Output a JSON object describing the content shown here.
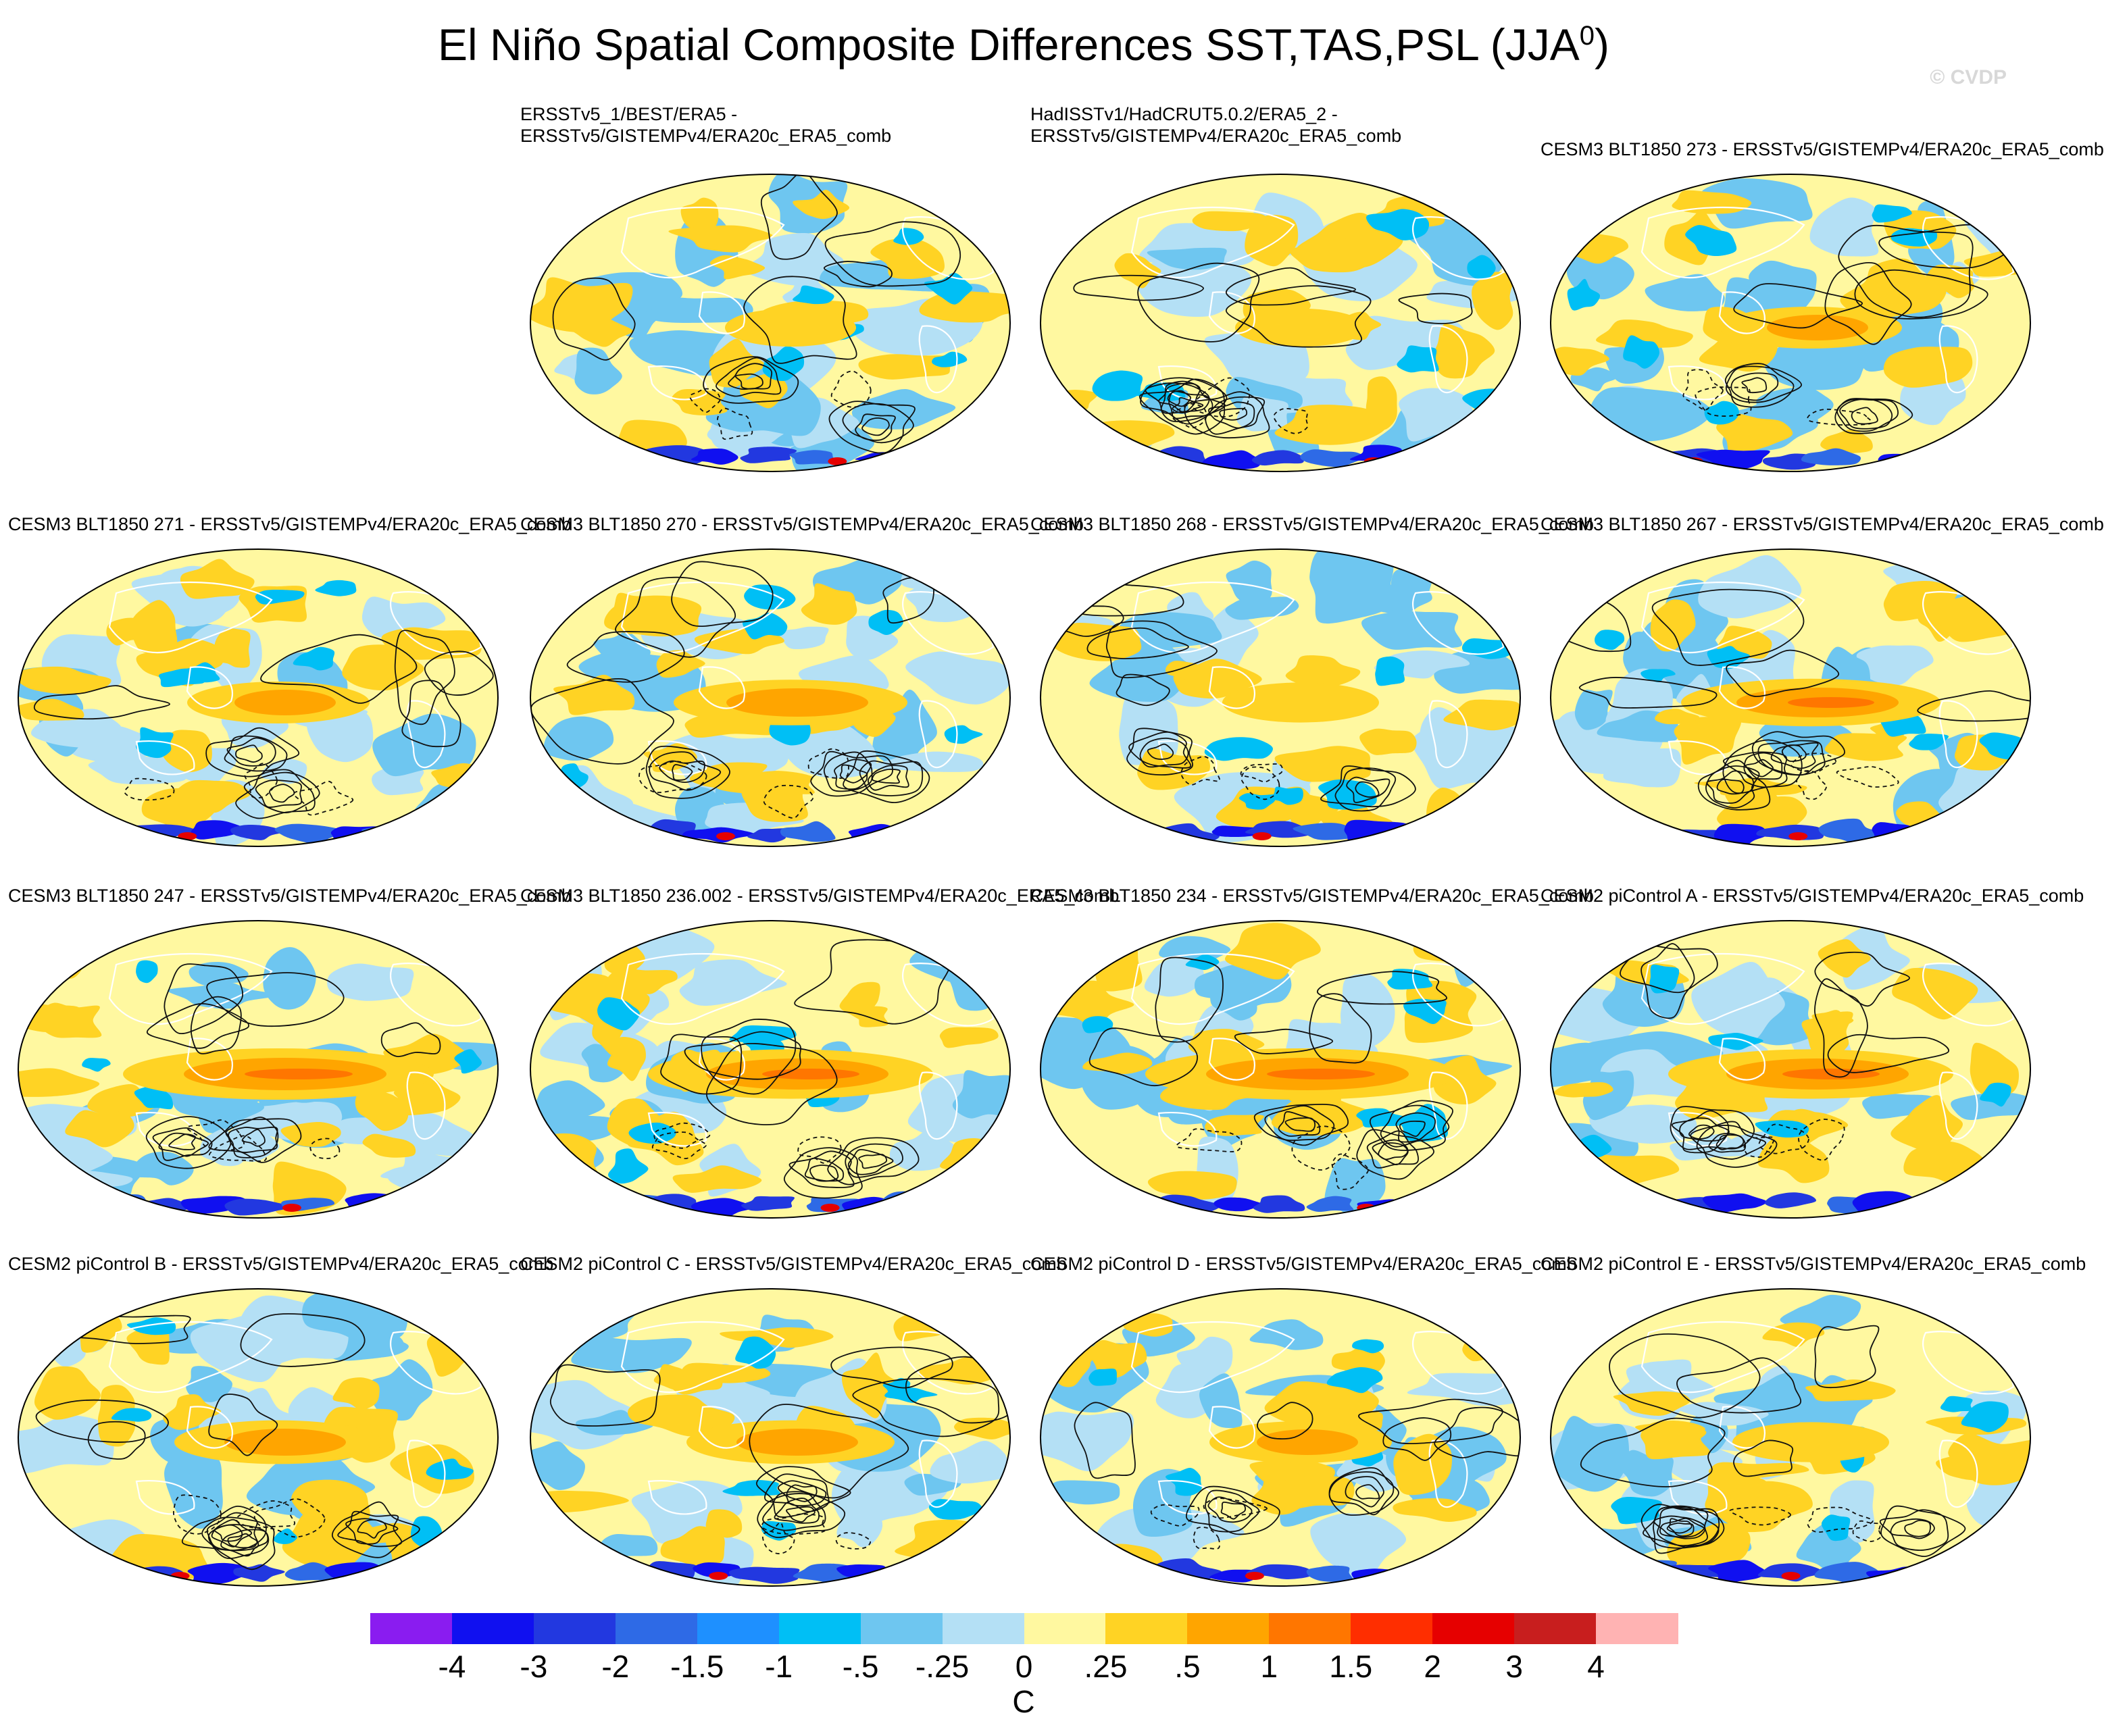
{
  "title": "El Niño Spatial Composite Differences SST,TAS,PSL (JJA",
  "title_superscript": "0",
  "title_close": ")",
  "watermark": "© CVDP",
  "panels": [
    {
      "lines": [
        "ERSSTv5_1/BEST/ERA5 -",
        "ERSSTv5/GISTEMPv4/ERA20c_ERA5_comb"
      ],
      "pattern": 0
    },
    {
      "lines": [
        "HadISSTv1/HadCRUT5.0.2/ERA5_2 -",
        "ERSSTv5/GISTEMPv4/ERA20c_ERA5_comb"
      ],
      "pattern": 1
    },
    {
      "lines": [
        "CESM3 BLT1850 273 - ERSSTv5/GISTEMPv4/ERA20c_ERA5_comb"
      ],
      "pattern": 2
    },
    {
      "lines": [
        "CESM3 BLT1850 271 - ERSSTv5/GISTEMPv4/ERA20c_ERA5_comb"
      ],
      "pattern": 3
    },
    {
      "lines": [
        "CESM3 BLT1850 270 - ERSSTv5/GISTEMPv4/ERA20c_ERA5_comb"
      ],
      "pattern": 4
    },
    {
      "lines": [
        "CESM3 BLT1850 268 - ERSSTv5/GISTEMPv4/ERA20c_ERA5_comb"
      ],
      "pattern": 5
    },
    {
      "lines": [
        "CESM3 BLT1850 267 - ERSSTv5/GISTEMPv4/ERA20c_ERA5_comb"
      ],
      "pattern": 6
    },
    {
      "lines": [
        "CESM3 BLT1850 247 - ERSSTv5/GISTEMPv4/ERA20c_ERA5_comb"
      ],
      "pattern": 7
    },
    {
      "lines": [
        "CESM3 BLT1850 236.002 - ERSSTv5/GISTEMPv4/ERA20c_ERA5_comb"
      ],
      "pattern": 8
    },
    {
      "lines": [
        "CESM3 BLT1850 234 - ERSSTv5/GISTEMPv4/ERA20c_ERA5_comb"
      ],
      "pattern": 9
    },
    {
      "lines": [
        "CESM2 piControl A - ERSSTv5/GISTEMPv4/ERA20c_ERA5_comb"
      ],
      "pattern": 10
    },
    {
      "lines": [
        "CESM2 piControl B - ERSSTv5/GISTEMPv4/ERA20c_ERA5_comb"
      ],
      "pattern": 11
    },
    {
      "lines": [
        "CESM2 piControl C - ERSSTv5/GISTEMPv4/ERA20c_ERA5_comb"
      ],
      "pattern": 12
    },
    {
      "lines": [
        "CESM2 piControl D - ERSSTv5/GISTEMPv4/ERA20c_ERA5_comb"
      ],
      "pattern": 13
    },
    {
      "lines": [
        "CESM2 piControl E - ERSSTv5/GISTEMPv4/ERA20c_ERA5_comb"
      ],
      "pattern": 14
    }
  ],
  "colorbar": {
    "colors": [
      "#8a1cf0",
      "#1010f0",
      "#2238e0",
      "#2e6ae6",
      "#1e90ff",
      "#00bff5",
      "#6ec6f0",
      "#b4e0f5",
      "#fff8a0",
      "#ffd324",
      "#ffa500",
      "#ff7600",
      "#ff2e00",
      "#e60000",
      "#c81e1e",
      "#ffb3b3"
    ],
    "labels": [
      "-4",
      "-3",
      "-2",
      "-1.5",
      "-1",
      "-.5",
      "-.25",
      "0",
      ".25",
      ".5",
      "1",
      "1.5",
      "2",
      "3",
      "4"
    ],
    "units": "C"
  }
}
